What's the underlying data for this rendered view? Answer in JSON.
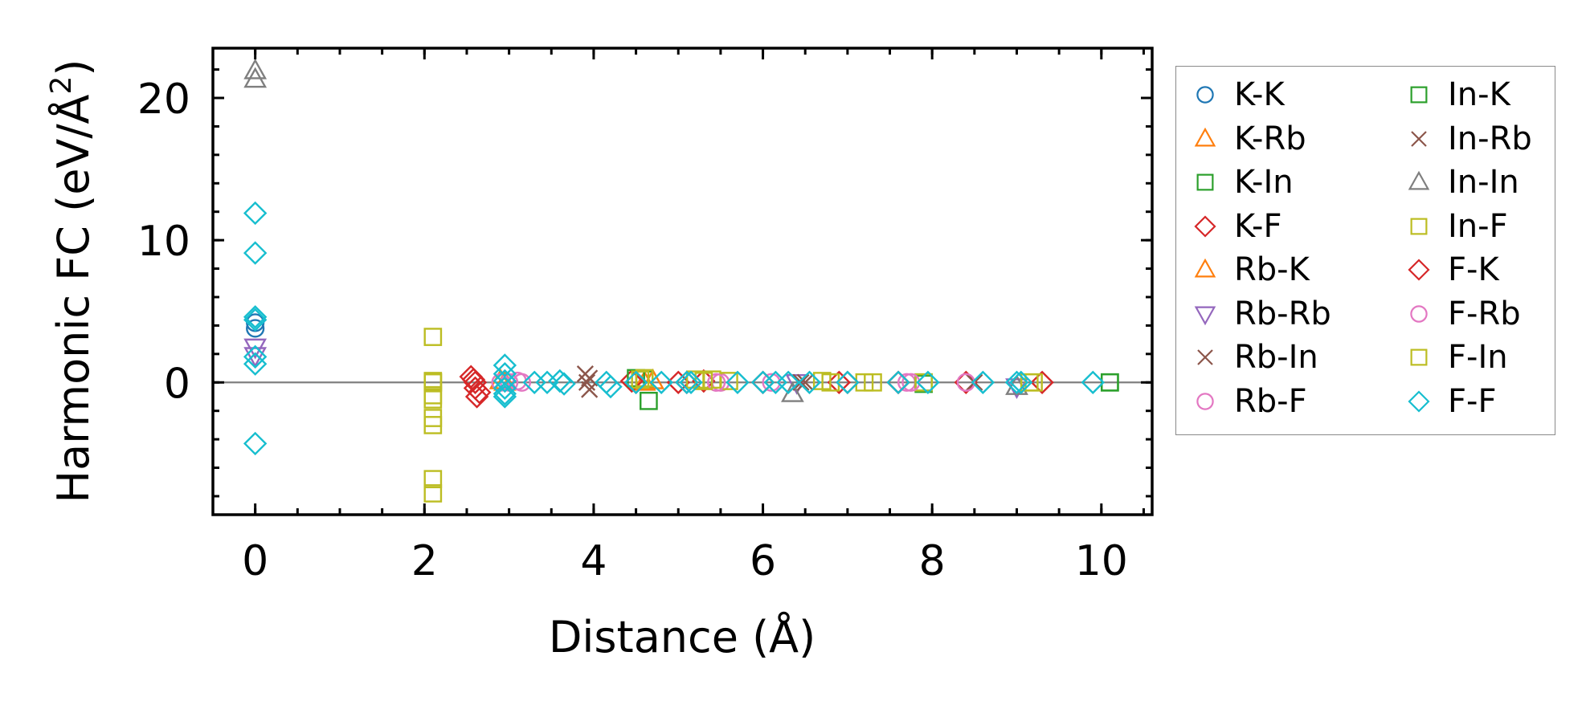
{
  "chart_data": {
    "type": "scatter",
    "title": "",
    "xlabel": "Distance (Å)",
    "ylabel_prefix": "Harmonic FC (eV/Å",
    "ylabel_sup": "2",
    "ylabel_suffix": ")",
    "xlim": [
      -0.5,
      10.6
    ],
    "ylim": [
      -9.3,
      23.5
    ],
    "xticks": [
      0,
      2,
      4,
      6,
      8,
      10
    ],
    "xtick_labels": [
      "0",
      "2",
      "4",
      "6",
      "8",
      "10"
    ],
    "yticks": [
      0,
      10,
      20
    ],
    "ytick_labels": [
      "0",
      "10",
      "20"
    ],
    "x_minor_step": 0.5,
    "y_minor_step": 2,
    "zero_line": true,
    "legend_position": "outside-right",
    "series": [
      {
        "name": "K-K",
        "marker": "circle",
        "color": "#1f77b4",
        "x": [
          0,
          0
        ],
        "y": [
          3.8,
          4.2
        ]
      },
      {
        "name": "K-Rb",
        "marker": "triangle-up",
        "color": "#ff7f0e",
        "x": [
          2.9,
          4.6
        ],
        "y": [
          0.1,
          0.0
        ]
      },
      {
        "name": "K-In",
        "marker": "square",
        "color": "#2ca02c",
        "x": [
          4.6,
          7.9,
          10.1
        ],
        "y": [
          0.2,
          0.0,
          0.0
        ]
      },
      {
        "name": "K-F",
        "marker": "diamond",
        "color": "#d62728",
        "x": [
          2.55,
          2.6,
          2.6,
          2.65,
          4.45,
          5.0,
          5.3,
          6.9,
          7.6,
          8.4,
          9.3
        ],
        "y": [
          0.4,
          0.0,
          -0.4,
          -0.7,
          0.1,
          0.0,
          0.1,
          0.0,
          0.0,
          0.0,
          0.0
        ]
      },
      {
        "name": "Rb-K",
        "marker": "triangle-up",
        "color": "#ff7f0e",
        "x": [
          2.95,
          4.7
        ],
        "y": [
          0.0,
          0.1
        ]
      },
      {
        "name": "Rb-Rb",
        "marker": "triangle-down",
        "color": "#9467bd",
        "x": [
          0,
          0,
          6.4,
          9.0
        ],
        "y": [
          2.5,
          1.9,
          0.0,
          -0.3
        ]
      },
      {
        "name": "Rb-In",
        "marker": "x",
        "color": "#8c564b",
        "x": [
          3.9,
          3.92,
          3.95,
          6.5,
          8.5
        ],
        "y": [
          0.6,
          0.0,
          -0.5,
          0.0,
          0.0
        ]
      },
      {
        "name": "Rb-F",
        "marker": "circle",
        "color": "#e377c2",
        "x": [
          2.9,
          3.1,
          5.5,
          6.1,
          7.7,
          8.4
        ],
        "y": [
          0.0,
          0.1,
          0.0,
          0.0,
          0.0,
          0.0
        ]
      },
      {
        "name": "In-K",
        "marker": "square",
        "color": "#2ca02c",
        "x": [
          4.5,
          4.65,
          7.9,
          10.1
        ],
        "y": [
          0.3,
          -1.3,
          -0.1,
          0.0
        ]
      },
      {
        "name": "In-Rb",
        "marker": "x",
        "color": "#8c564b",
        "x": [
          3.95,
          6.45
        ],
        "y": [
          0.3,
          0.0
        ]
      },
      {
        "name": "In-In",
        "marker": "triangle-up",
        "color": "#7f7f7f",
        "x": [
          0,
          0,
          6.35,
          9.0
        ],
        "y": [
          21.9,
          21.3,
          -0.8,
          -0.3
        ]
      },
      {
        "name": "In-F",
        "marker": "square",
        "color": "#bcbd22",
        "x": [
          2.1,
          2.1,
          2.1,
          2.1,
          2.1,
          2.1,
          2.1,
          2.1,
          2.1,
          4.6,
          5.2,
          5.4,
          5.6,
          6.7,
          7.2,
          7.9,
          9.2
        ],
        "y": [
          3.2,
          0.0,
          -0.9,
          -1.2,
          -2.5,
          -3.0,
          -6.8,
          -7.8,
          0.1,
          0.3,
          0.2,
          0.2,
          0.1,
          0.1,
          0.0,
          0.0,
          0.0
        ]
      },
      {
        "name": "F-K",
        "marker": "diamond",
        "color": "#d62728",
        "x": [
          2.58,
          2.62,
          4.5,
          5.1,
          6.0,
          7.0,
          7.6
        ],
        "y": [
          0.2,
          -1.0,
          0.0,
          0.0,
          0.0,
          0.0,
          0.0
        ]
      },
      {
        "name": "F-Rb",
        "marker": "circle",
        "color": "#e377c2",
        "x": [
          3.0,
          3.15,
          5.45,
          7.75
        ],
        "y": [
          0.0,
          0.0,
          0.0,
          0.0
        ]
      },
      {
        "name": "F-In",
        "marker": "square",
        "color": "#bcbd22",
        "x": [
          2.1,
          4.55,
          5.3,
          6.8,
          7.3,
          9.15
        ],
        "y": [
          0.0,
          0.2,
          0.1,
          0.0,
          0.0,
          0.0
        ]
      },
      {
        "name": "F-F",
        "marker": "diamond",
        "color": "#17becf",
        "x": [
          0,
          0,
          0,
          0,
          0,
          0,
          0,
          2.95,
          2.95,
          2.95,
          2.95,
          2.95,
          2.95,
          3.3,
          3.45,
          3.6,
          3.65,
          4.15,
          4.2,
          4.5,
          4.8,
          5.1,
          5.15,
          5.7,
          6.0,
          6.15,
          6.3,
          6.55,
          7.0,
          7.6,
          7.95,
          8.6,
          9.0,
          9.05,
          9.9
        ],
        "y": [
          11.9,
          9.1,
          4.6,
          4.4,
          1.8,
          1.3,
          -4.3,
          1.2,
          0.6,
          0.1,
          -0.4,
          -0.8,
          -1.0,
          0.0,
          0.0,
          0.1,
          -0.1,
          0.0,
          -0.3,
          0.0,
          0.0,
          0.0,
          0.0,
          0.0,
          0.0,
          0.0,
          0.0,
          0.0,
          0.0,
          0.0,
          0.0,
          0.0,
          0.0,
          0.0,
          0.0
        ]
      }
    ]
  }
}
